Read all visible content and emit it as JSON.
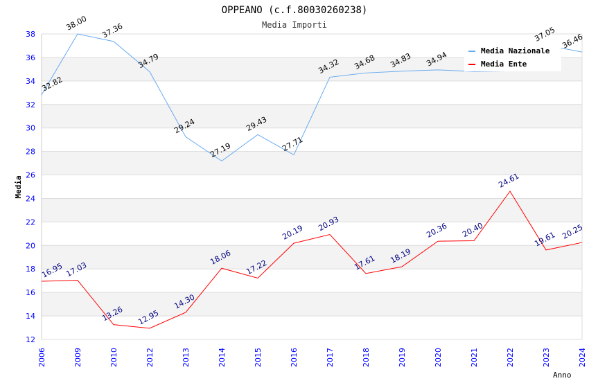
{
  "chart_data": {
    "type": "line",
    "title": "OPPEANO (c.f.80030260238)",
    "subtitle": "Media Importi",
    "xlabel": "Anno",
    "ylabel": "Media",
    "ylim": [
      12,
      38
    ],
    "yticks": [
      12,
      14,
      16,
      18,
      20,
      22,
      24,
      26,
      28,
      30,
      32,
      34,
      36,
      38
    ],
    "grid": true,
    "legend_position": "top-right",
    "categories": [
      "2006",
      "2009",
      "2010",
      "2012",
      "2013",
      "2014",
      "2015",
      "2016",
      "2017",
      "2018",
      "2019",
      "2020",
      "2021",
      "2022",
      "2023",
      "2024"
    ],
    "series": [
      {
        "name": "Media Nazionale",
        "color": "#6aaaf0",
        "label_color": "#000000",
        "values": [
          32.82,
          38.0,
          37.36,
          34.79,
          29.24,
          27.19,
          29.43,
          27.71,
          34.32,
          34.68,
          34.83,
          34.94,
          34.8,
          34.85,
          37.05,
          36.46
        ],
        "labels": [
          "32.82",
          "38.00",
          "37.36",
          "34.79",
          "29.24",
          "27.19",
          "29.43",
          "27.71",
          "34.32",
          "34.68",
          "34.83",
          "34.94",
          null,
          null,
          "37.05",
          "36.46"
        ]
      },
      {
        "name": "Media Ente",
        "color": "#ff0000",
        "label_color": "#000080",
        "values": [
          16.95,
          17.03,
          13.26,
          12.95,
          14.3,
          18.06,
          17.22,
          20.19,
          20.93,
          17.61,
          18.19,
          20.36,
          20.4,
          24.61,
          19.61,
          20.25
        ],
        "labels": [
          "16.95",
          "17.03",
          "13.26",
          "12.95",
          "14.30",
          "18.06",
          "17.22",
          "20.19",
          "20.93",
          "17.61",
          "18.19",
          "20.36",
          "20.40",
          "24.61",
          "19.61",
          "20.25"
        ]
      }
    ]
  }
}
